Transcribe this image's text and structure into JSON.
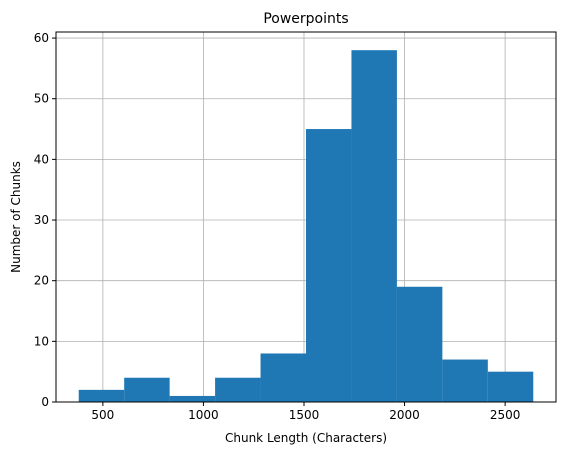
{
  "chart_data": {
    "type": "bar",
    "title": "Powerpoints",
    "xlabel": "Chunk Length (Characters)",
    "ylabel": "Number of Chunks",
    "bin_edges": [
      380,
      606,
      832,
      1058,
      1284,
      1510,
      1736,
      1962,
      2188,
      2414,
      2640
    ],
    "values": [
      2,
      4,
      1,
      4,
      8,
      45,
      58,
      19,
      7,
      5
    ],
    "xlim": [
      267,
      2753
    ],
    "ylim": [
      0,
      61
    ],
    "xticks": [
      500,
      1000,
      1500,
      2000,
      2500
    ],
    "yticks": [
      0,
      10,
      20,
      30,
      40,
      50,
      60
    ],
    "grid": true,
    "bar_color": "#1f77b4",
    "grid_color": "#b0b0b0"
  }
}
